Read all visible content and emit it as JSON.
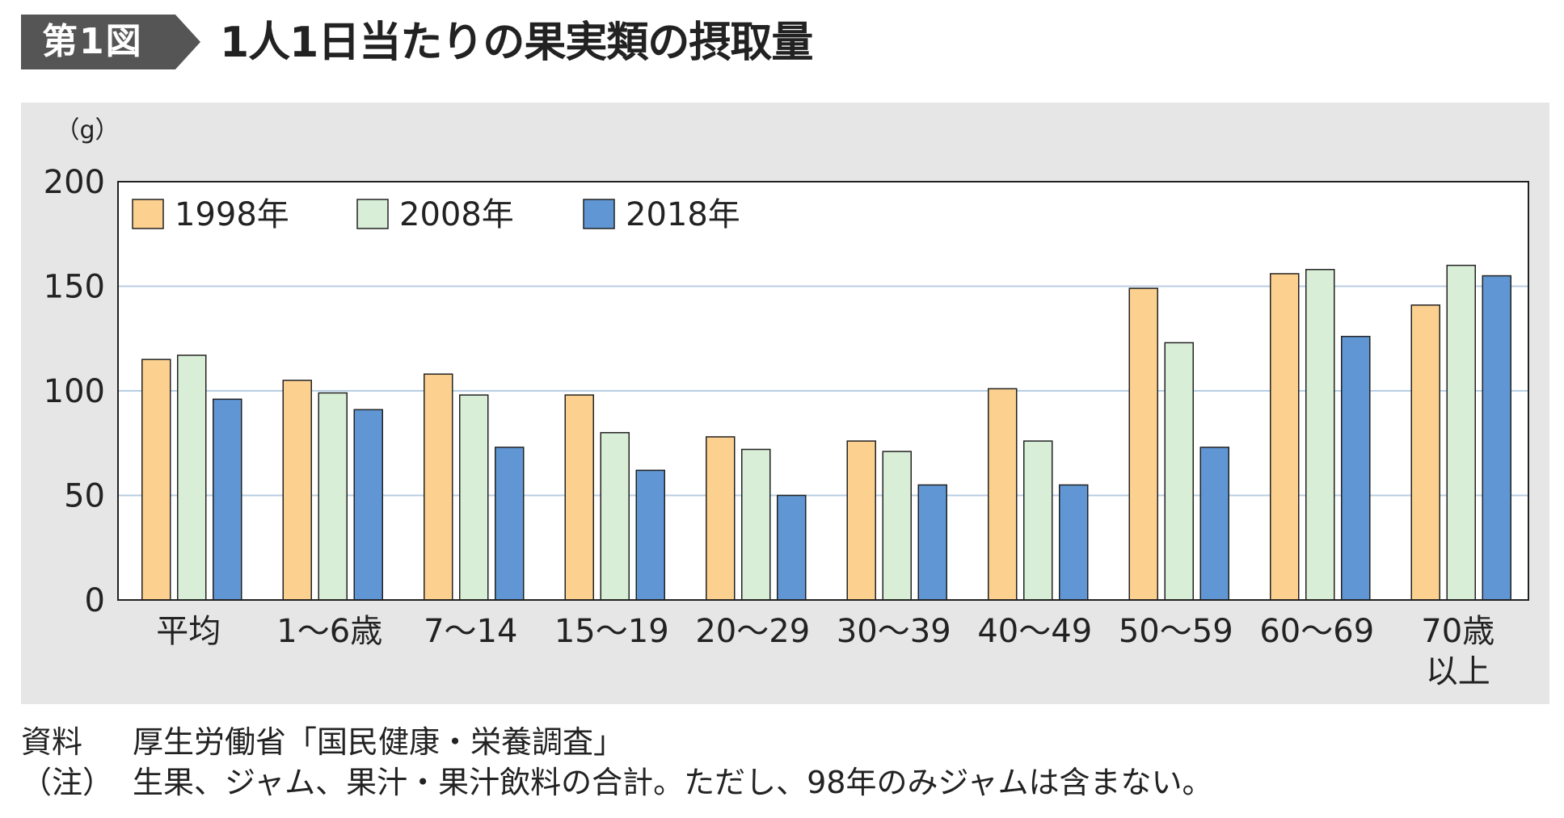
{
  "header": {
    "figure_label": "第1図",
    "title": "1人1日当たりの果実類の摂取量"
  },
  "chart_data": {
    "type": "bar",
    "title": "1人1日当たりの果実類の摂取量",
    "ylabel": "（g）",
    "xlabel": "",
    "ylim": [
      0,
      200
    ],
    "yticks": [
      0,
      50,
      100,
      150,
      200
    ],
    "grid": true,
    "legend_position": "top-left",
    "categories": [
      "平均",
      "1～6歳",
      "7～14",
      "15～19",
      "20～29",
      "30～39",
      "40～49",
      "50～59",
      "60～69",
      "70歳以上"
    ],
    "category_lines": [
      [
        "平均"
      ],
      [
        "1～6歳"
      ],
      [
        "7～14"
      ],
      [
        "15～19"
      ],
      [
        "20～29"
      ],
      [
        "30～39"
      ],
      [
        "40～49"
      ],
      [
        "50～59"
      ],
      [
        "60～69"
      ],
      [
        "70歳",
        "以上"
      ]
    ],
    "series": [
      {
        "name": "1998年",
        "color": "#fcd08f",
        "values": [
          115,
          105,
          108,
          98,
          78,
          76,
          101,
          149,
          156,
          141
        ]
      },
      {
        "name": "2008年",
        "color": "#d9eed7",
        "values": [
          117,
          99,
          98,
          80,
          72,
          71,
          76,
          123,
          158,
          160
        ]
      },
      {
        "name": "2018年",
        "color": "#5f96d3",
        "values": [
          96,
          91,
          73,
          62,
          50,
          55,
          55,
          73,
          126,
          155
        ]
      }
    ]
  },
  "footnotes": {
    "source_label": "資料",
    "source_text": "厚生労働省「国民健康・栄養調査」",
    "note_label": "（注）",
    "note_text": "生果、ジャム、果汁・果汁飲料の合計。ただし、98年のみジャムは含まない。"
  },
  "colors": {
    "panel_bg": "#e6e6e6",
    "plot_bg": "#ffffff",
    "grid": "#b8cde3",
    "bar_stroke": "#222222"
  }
}
